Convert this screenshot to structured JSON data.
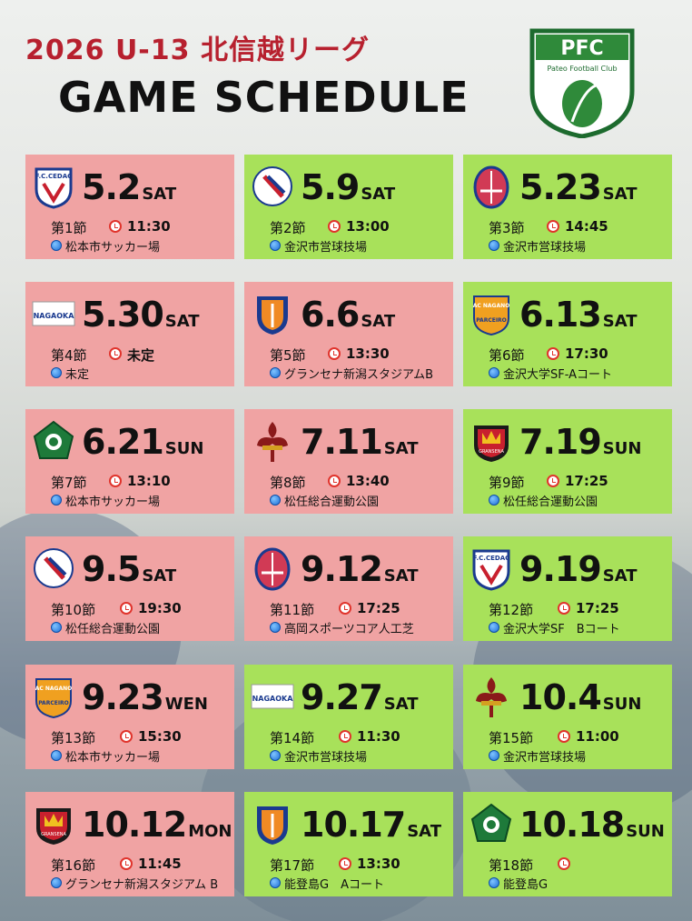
{
  "header": {
    "title_line1": "2026 U-13 北信越リーグ",
    "title_line2": "GAME SCHEDULE",
    "logo_text": "PFC",
    "logo_subtext": "Pateo Football Club"
  },
  "games": [
    {
      "color": "red",
      "badge": "cedac",
      "date": "5.2",
      "weekday": "SAT",
      "round": "第1節",
      "time": "11:30",
      "venue": "松本市サッカー場"
    },
    {
      "color": "green",
      "badge": "hakusan",
      "date": "5.9",
      "weekday": "SAT",
      "round": "第2節",
      "time": "13:00",
      "venue": "金沢市営球技場"
    },
    {
      "color": "green",
      "badge": "toyama",
      "date": "5.23",
      "weekday": "SAT",
      "round": "第3節",
      "time": "14:45",
      "venue": "金沢市営球技場"
    },
    {
      "color": "red",
      "badge": "nagaoka",
      "date": "5.30",
      "weekday": "SAT",
      "round": "第4節",
      "time": "未定",
      "venue": "未定"
    },
    {
      "color": "red",
      "badge": "niigata",
      "date": "6.6",
      "weekday": "SAT",
      "round": "第5節",
      "time": "13:30",
      "venue": "グランセナ新潟スタジアムB"
    },
    {
      "color": "green",
      "badge": "parceiro",
      "date": "6.13",
      "weekday": "SAT",
      "round": "第6節",
      "time": "17:30",
      "venue": "金沢大学SF-Aコート"
    },
    {
      "color": "red",
      "badge": "matsumoto",
      "date": "6.21",
      "weekday": "SUN",
      "round": "第7節",
      "time": "13:10",
      "venue": "松本市サッカー場"
    },
    {
      "color": "red",
      "badge": "fleur",
      "date": "7.11",
      "weekday": "SAT",
      "round": "第8節",
      "time": "13:40",
      "venue": "松任総合運動公園"
    },
    {
      "color": "green",
      "badge": "gransena",
      "date": "7.19",
      "weekday": "SUN",
      "round": "第9節",
      "time": "17:25",
      "venue": "松任総合運動公園"
    },
    {
      "color": "red",
      "badge": "hakusan",
      "date": "9.5",
      "weekday": "SAT",
      "round": "第10節",
      "time": "19:30",
      "venue": "松任総合運動公園"
    },
    {
      "color": "red",
      "badge": "toyama",
      "date": "9.12",
      "weekday": "SAT",
      "round": "第11節",
      "time": "17:25",
      "venue": "高岡スポーツコア人工芝"
    },
    {
      "color": "green",
      "badge": "cedac",
      "date": "9.19",
      "weekday": "SAT",
      "round": "第12節",
      "time": "17:25",
      "venue": "金沢大学SF　Bコート"
    },
    {
      "color": "red",
      "badge": "parceiro",
      "date": "9.23",
      "weekday": "WEN",
      "round": "第13節",
      "time": "15:30",
      "venue": "松本市サッカー場"
    },
    {
      "color": "green",
      "badge": "nagaoka",
      "date": "9.27",
      "weekday": "SAT",
      "round": "第14節",
      "time": "11:30",
      "venue": "金沢市営球技場"
    },
    {
      "color": "green",
      "badge": "fleur",
      "date": "10.4",
      "weekday": "SUN",
      "round": "第15節",
      "time": "11:00",
      "venue": "金沢市営球技場"
    },
    {
      "color": "red",
      "badge": "gransena",
      "date": "10.12",
      "weekday": "MON",
      "round": "第16節",
      "time": "11:45",
      "venue": "グランセナ新潟スタジアム B"
    },
    {
      "color": "green",
      "badge": "niigata",
      "date": "10.17",
      "weekday": "SAT",
      "round": "第17節",
      "time": "13:30",
      "venue": "能登島G　Aコート"
    },
    {
      "color": "green",
      "badge": "matsumoto",
      "date": "10.18",
      "weekday": "SUN",
      "round": "第18節",
      "time": "",
      "venue": "能登島G"
    }
  ],
  "colors": {
    "red_card": "#f0a3a3",
    "green_card": "#a8e15a",
    "title_red": "#b7202e"
  }
}
